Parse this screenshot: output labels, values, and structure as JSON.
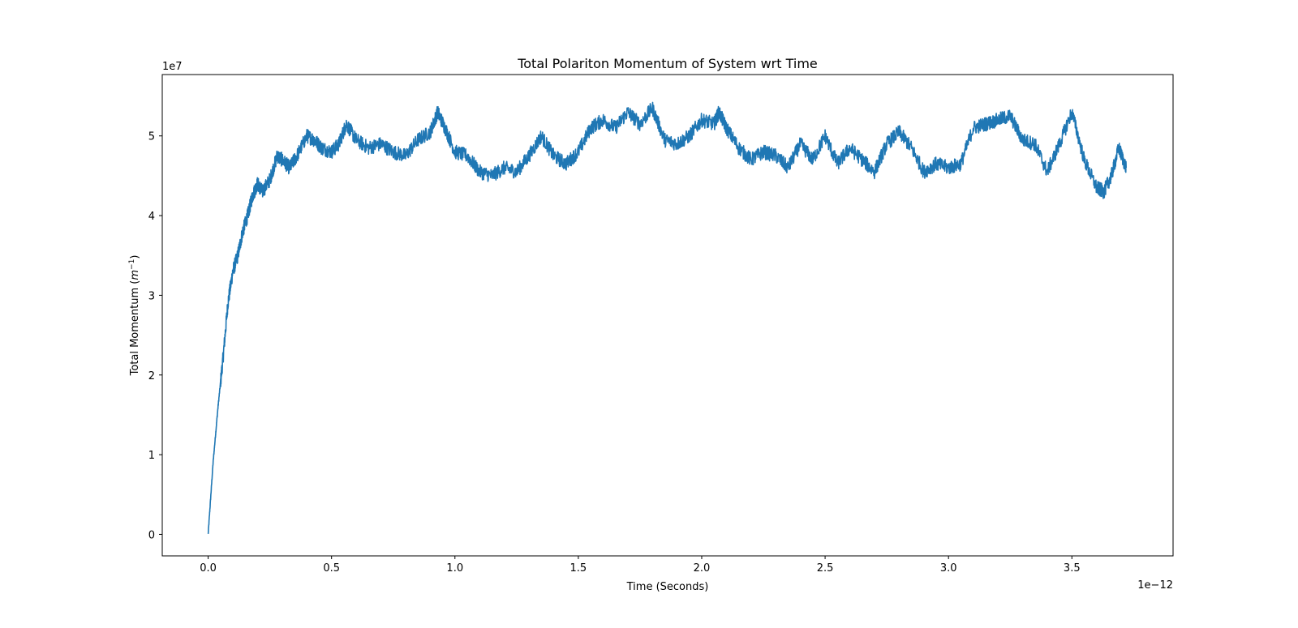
{
  "chart_data": {
    "type": "line",
    "title": "Total Polariton Momentum of System wrt Time",
    "xlabel": "Time (Seconds)",
    "ylabel_main": "Total Momentum (",
    "ylabel_math": "m",
    "ylabel_sup": "−1",
    "ylabel_close": ")",
    "x_offset_label": "1e−12",
    "y_offset_label": "1e7",
    "xlim": [
      -0.186,
      3.91
    ],
    "ylim": [
      -0.27,
      5.77
    ],
    "x_ticks": [
      0.0,
      0.5,
      1.0,
      1.5,
      2.0,
      2.5,
      3.0,
      3.5
    ],
    "x_tick_labels": [
      "0.0",
      "0.5",
      "1.0",
      "1.5",
      "2.0",
      "2.5",
      "3.0",
      "3.5"
    ],
    "y_ticks": [
      0,
      1,
      2,
      3,
      4,
      5
    ],
    "y_tick_labels": [
      "0",
      "1",
      "2",
      "3",
      "4",
      "5"
    ],
    "grid": false,
    "color": "#1f77b4",
    "series": [
      {
        "x": [
          0.0,
          0.02,
          0.04,
          0.06,
          0.08,
          0.1,
          0.12,
          0.14,
          0.16,
          0.18,
          0.2,
          0.22,
          0.25,
          0.28,
          0.3,
          0.33,
          0.36,
          0.4,
          0.43,
          0.46,
          0.5,
          0.53,
          0.56,
          0.6,
          0.65,
          0.7,
          0.75,
          0.8,
          0.85,
          0.9,
          0.93,
          0.96,
          1.0,
          1.05,
          1.1,
          1.15,
          1.2,
          1.25,
          1.3,
          1.35,
          1.4,
          1.45,
          1.5,
          1.55,
          1.6,
          1.65,
          1.7,
          1.75,
          1.8,
          1.85,
          1.9,
          1.95,
          2.0,
          2.05,
          2.07,
          2.1,
          2.15,
          2.2,
          2.25,
          2.3,
          2.35,
          2.4,
          2.45,
          2.5,
          2.55,
          2.6,
          2.65,
          2.7,
          2.75,
          2.8,
          2.85,
          2.9,
          2.95,
          3.0,
          3.05,
          3.1,
          3.15,
          3.2,
          3.25,
          3.3,
          3.35,
          3.4,
          3.45,
          3.5,
          3.55,
          3.6,
          3.63,
          3.66,
          3.69,
          3.72
        ],
        "y": [
          0.0,
          0.9,
          1.6,
          2.2,
          2.9,
          3.3,
          3.5,
          3.8,
          4.0,
          4.25,
          4.4,
          4.3,
          4.45,
          4.75,
          4.7,
          4.6,
          4.75,
          5.0,
          4.95,
          4.85,
          4.8,
          4.9,
          5.15,
          4.95,
          4.85,
          4.9,
          4.8,
          4.75,
          4.95,
          5.05,
          5.3,
          5.1,
          4.8,
          4.75,
          4.55,
          4.5,
          4.6,
          4.55,
          4.75,
          5.0,
          4.75,
          4.65,
          4.8,
          5.1,
          5.2,
          5.1,
          5.3,
          5.15,
          5.35,
          4.95,
          4.9,
          5.0,
          5.2,
          5.15,
          5.3,
          5.1,
          4.85,
          4.7,
          4.8,
          4.75,
          4.6,
          4.9,
          4.7,
          5.0,
          4.65,
          4.85,
          4.7,
          4.55,
          4.9,
          5.05,
          4.85,
          4.55,
          4.65,
          4.6,
          4.65,
          5.1,
          5.15,
          5.2,
          5.25,
          4.95,
          4.9,
          4.55,
          4.9,
          5.3,
          4.7,
          4.35,
          4.3,
          4.5,
          4.85,
          4.6
        ]
      }
    ]
  }
}
